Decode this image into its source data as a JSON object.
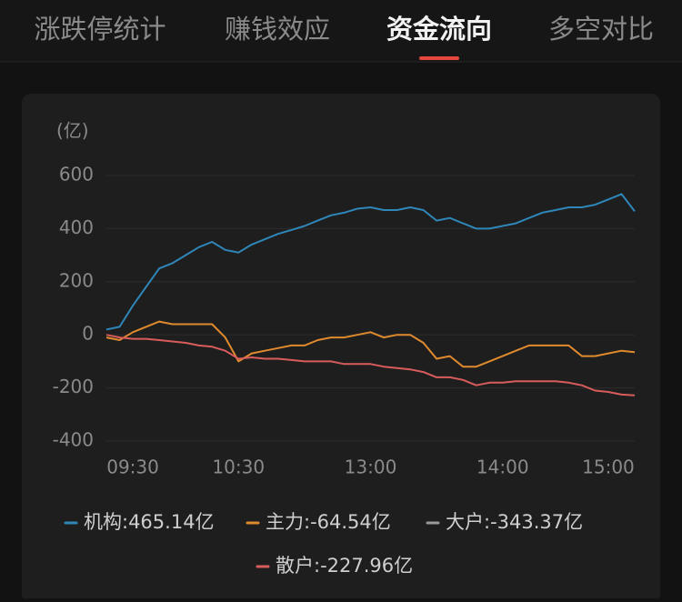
{
  "tabs": [
    {
      "label": "涨跌停统计"
    },
    {
      "label": "赚钱效应"
    },
    {
      "label": "资金流向",
      "active": true
    },
    {
      "label": "多空对比"
    }
  ],
  "chart_data": {
    "type": "line",
    "y_label": "(亿)",
    "categories": [
      null,
      null,
      "09:30",
      null,
      null,
      null,
      null,
      null,
      null,
      null,
      "10:30",
      null,
      null,
      null,
      null,
      null,
      null,
      null,
      null,
      null,
      "13:00",
      null,
      null,
      null,
      null,
      null,
      null,
      null,
      null,
      null,
      "14:00",
      null,
      null,
      null,
      null,
      null,
      null,
      null,
      "15:00",
      null,
      null
    ],
    "series": [
      {
        "name": "机构:465.14亿",
        "color": "#2f86b8",
        "values": [
          20,
          30,
          110,
          180,
          250,
          270,
          300,
          330,
          350,
          320,
          310,
          340,
          360,
          380,
          395,
          410,
          430,
          450,
          460,
          475,
          480,
          470,
          470,
          480,
          470,
          430,
          440,
          420,
          400,
          400,
          410,
          420,
          440,
          460,
          470,
          480,
          480,
          490,
          510,
          530,
          465
        ]
      },
      {
        "name": "主力:-64.54亿",
        "color": "#e08a2e",
        "values": [
          -10,
          -20,
          10,
          30,
          50,
          40,
          40,
          40,
          40,
          -10,
          -100,
          -70,
          -60,
          -50,
          -40,
          -40,
          -20,
          -10,
          -10,
          0,
          10,
          -10,
          0,
          0,
          -30,
          -90,
          -80,
          -120,
          -120,
          -100,
          -80,
          -60,
          -40,
          -40,
          -40,
          -40,
          -80,
          -80,
          -70,
          -60,
          -65
        ]
      },
      {
        "name": "大户:-343.37亿",
        "color": "#9a9a9a",
        "values": [
          null,
          null,
          null,
          null,
          null,
          null,
          null,
          null,
          null,
          null,
          null,
          null,
          null,
          null,
          null,
          null,
          null,
          null,
          null,
          null,
          null,
          null,
          null,
          null,
          null,
          null,
          null,
          null,
          null,
          null,
          null,
          null,
          null,
          null,
          null,
          null,
          null,
          null,
          null,
          null,
          null
        ]
      },
      {
        "name": "散户:-227.96亿",
        "color": "#d95c5c",
        "values": [
          0,
          -10,
          -15,
          -15,
          -20,
          -25,
          -30,
          -40,
          -45,
          -60,
          -90,
          -85,
          -90,
          -90,
          -95,
          -100,
          -100,
          -100,
          -110,
          -110,
          -110,
          -120,
          -125,
          -130,
          -140,
          -160,
          -160,
          -170,
          -190,
          -180,
          -180,
          -175,
          -175,
          -175,
          -175,
          -180,
          -190,
          -210,
          -215,
          -225,
          -228
        ]
      }
    ],
    "ylim": [
      -400,
      600
    ],
    "yticks": [
      -400,
      -200,
      0,
      200,
      400,
      600
    ],
    "grid": true
  }
}
